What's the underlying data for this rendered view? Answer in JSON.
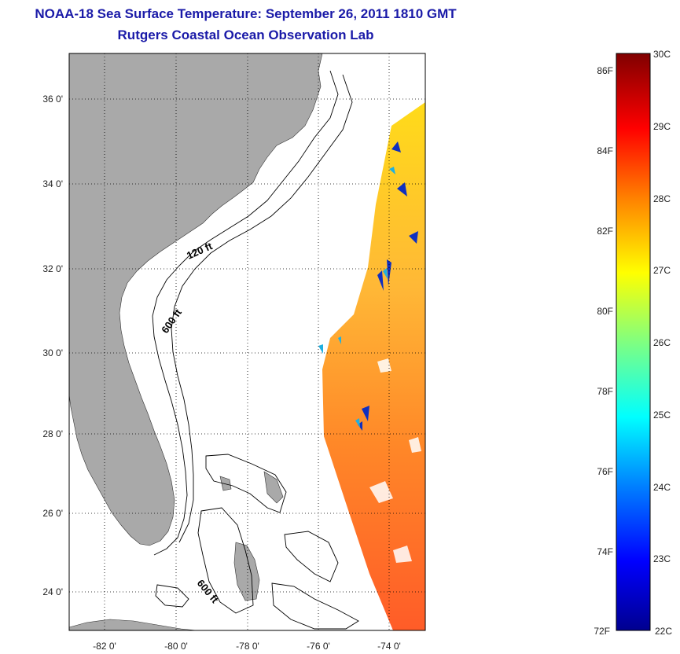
{
  "header": {
    "title": "NOAA-18 Sea Surface Temperature:  September 26, 2011 1810 GMT",
    "subtitle": "Rutgers Coastal Ocean Observation Lab"
  },
  "map": {
    "lon_range": [
      -83,
      -73
    ],
    "lat_range": [
      23,
      37
    ],
    "lon_ticks": [
      {
        "lon": -82,
        "label": "-82 0'"
      },
      {
        "lon": -80,
        "label": "-80 0'"
      },
      {
        "lon": -78,
        "label": "-78 0'"
      },
      {
        "lon": -76,
        "label": "-76 0'"
      },
      {
        "lon": -74,
        "label": "-74 0'"
      }
    ],
    "lat_ticks": [
      {
        "lat": 36,
        "label": "36 0'"
      },
      {
        "lat": 34,
        "label": "34 0'"
      },
      {
        "lat": 32,
        "label": "32 0'"
      },
      {
        "lat": 30,
        "label": "30 0'"
      },
      {
        "lat": 28,
        "label": "28 0'"
      },
      {
        "lat": 26,
        "label": "26 0'"
      },
      {
        "lat": 24,
        "label": "24 0'"
      }
    ],
    "grid": true,
    "land_color": "#a9a9a9",
    "contours": [
      {
        "label": "120 ft"
      },
      {
        "label": "600 ft"
      },
      {
        "label": "600 ft"
      }
    ]
  },
  "colorbar": {
    "range_c": [
      22,
      30
    ],
    "celsius_labels": [
      "30C",
      "29C",
      "28C",
      "27C",
      "26C",
      "25C",
      "24C",
      "23C",
      "22C"
    ],
    "fahrenheit_labels": [
      "86F",
      "84F",
      "82F",
      "80F",
      "78F",
      "76F",
      "74F",
      "72F"
    ],
    "colors": [
      "#00008f",
      "#0000ff",
      "#0080ff",
      "#00ffff",
      "#80ff80",
      "#ffff00",
      "#ff8000",
      "#ff0000",
      "#800000"
    ]
  }
}
